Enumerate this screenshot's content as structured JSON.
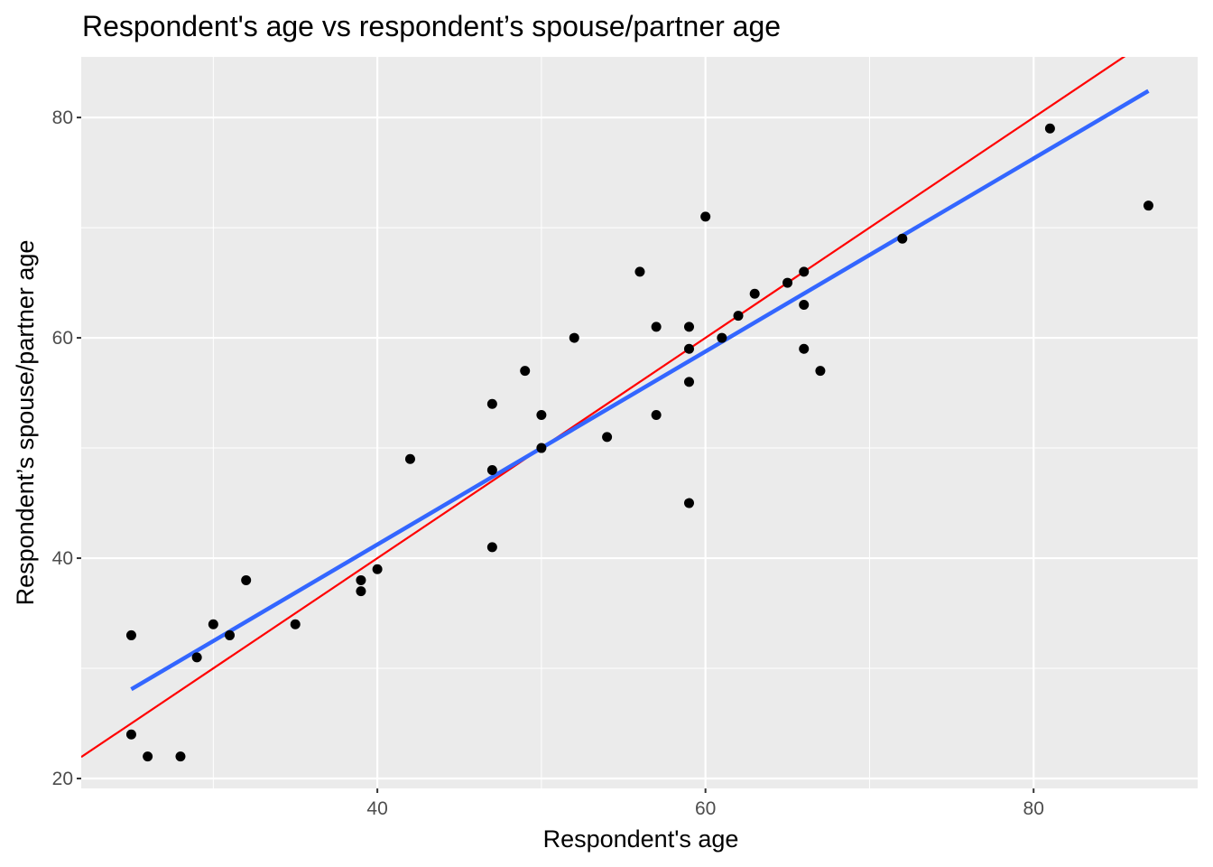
{
  "chart_data": {
    "type": "scatter",
    "title": "Respondent's age vs respondent’s spouse/partner age",
    "xlabel": "Respondent's age",
    "ylabel": "Respondent’s spouse/partner age",
    "xlim": [
      21.95,
      90.0
    ],
    "ylim": [
      19.1,
      85.5
    ],
    "x_ticks": [
      40,
      60,
      80
    ],
    "y_ticks": [
      20,
      40,
      60,
      80
    ],
    "x_minor": [
      30,
      50,
      70
    ],
    "y_minor": [
      30,
      50,
      70
    ],
    "grid": true,
    "points": [
      [
        25,
        33
      ],
      [
        25,
        24
      ],
      [
        26,
        22
      ],
      [
        28,
        22
      ],
      [
        29,
        31
      ],
      [
        30,
        34
      ],
      [
        31,
        33
      ],
      [
        32,
        38
      ],
      [
        35,
        34
      ],
      [
        39,
        38
      ],
      [
        39,
        37
      ],
      [
        40,
        39
      ],
      [
        42,
        49
      ],
      [
        47,
        54
      ],
      [
        47,
        48
      ],
      [
        47,
        41
      ],
      [
        49,
        57
      ],
      [
        50,
        53
      ],
      [
        50,
        50
      ],
      [
        52,
        60
      ],
      [
        54,
        51
      ],
      [
        56,
        66
      ],
      [
        57,
        61
      ],
      [
        57,
        53
      ],
      [
        59,
        61
      ],
      [
        59,
        59
      ],
      [
        59,
        56
      ],
      [
        59,
        45
      ],
      [
        60,
        71
      ],
      [
        61,
        60
      ],
      [
        62,
        62
      ],
      [
        63,
        64
      ],
      [
        65,
        65
      ],
      [
        66,
        66
      ],
      [
        66,
        63
      ],
      [
        66,
        59
      ],
      [
        67,
        57
      ],
      [
        72,
        69
      ],
      [
        81,
        79
      ],
      [
        87,
        72
      ]
    ],
    "lines": [
      {
        "name": "identity line y = x",
        "color": "#ff0000",
        "slope": 1,
        "intercept": 0,
        "x_range": [
          21.95,
          90
        ]
      },
      {
        "name": "linear fit",
        "color": "#3366ff",
        "slope": 0.876,
        "intercept": 6.2,
        "x_range": [
          25,
          87
        ]
      }
    ],
    "colors": {
      "panel": "#ebebeb",
      "grid": "#ffffff",
      "points": "#000000"
    }
  }
}
